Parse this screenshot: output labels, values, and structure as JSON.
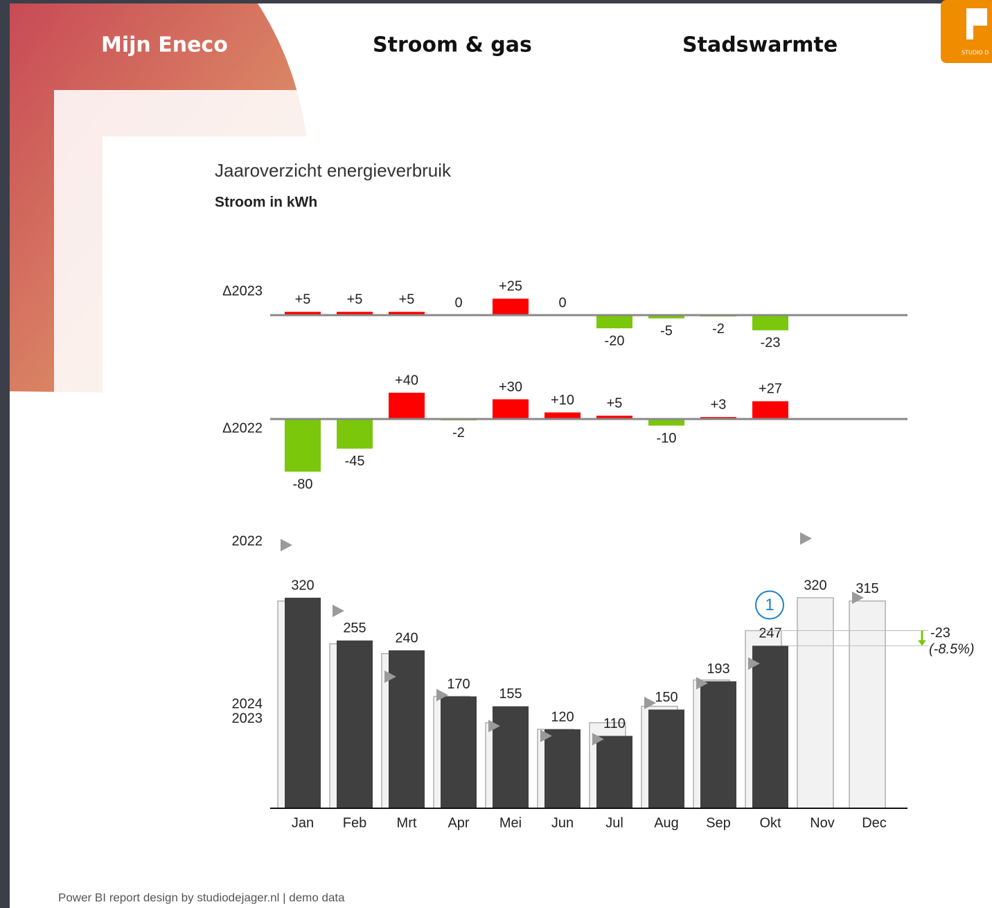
{
  "nav": {
    "items": [
      "Mijn Eneco",
      "Stroom & gas",
      "Stadswarmte"
    ],
    "logo_text": "STUDIO D"
  },
  "footer": "Power BI report design by studiodejager.nl | demo data",
  "chart_data": {
    "type": "ibcs-variance",
    "title": "Jaaroverzicht energieverbruik",
    "subtitle": "Stroom in kWh",
    "categories": [
      "Jan",
      "Feb",
      "Mrt",
      "Apr",
      "Mei",
      "Jun",
      "Jul",
      "Aug",
      "Sep",
      "Okt",
      "Nov",
      "Dec"
    ],
    "ylim": [
      0,
      420
    ],
    "series": [
      {
        "name": "2024",
        "color": "#404040",
        "values": [
          320,
          255,
          240,
          170,
          155,
          120,
          110,
          150,
          193,
          247,
          null,
          null
        ]
      },
      {
        "name": "2023",
        "color": "#f2f2f2",
        "values": [
          315,
          250,
          235,
          170,
          130,
          120,
          130,
          155,
          195,
          270,
          320,
          315
        ]
      },
      {
        "name": "2022",
        "color": "#9a9a9a",
        "values": [
          400,
          300,
          200,
          172,
          125,
          110,
          105,
          160,
          190,
          220,
          410,
          320
        ]
      }
    ],
    "delta_series": [
      {
        "name": "Δ2023",
        "values": [
          5,
          5,
          5,
          0,
          25,
          0,
          -20,
          -5,
          -2,
          -23,
          null,
          null
        ],
        "value_labels": [
          "+5",
          "+5",
          "+5",
          "0",
          "+25",
          "0",
          "-20",
          "-5",
          "-2",
          "-23",
          null,
          null
        ]
      },
      {
        "name": "Δ2022",
        "values": [
          -80,
          -45,
          40,
          -2,
          30,
          10,
          5,
          -10,
          3,
          27,
          null,
          null
        ],
        "value_labels": [
          "-80",
          "-45",
          "+40",
          "-2",
          "+30",
          "+10",
          "+5",
          "-10",
          "+3",
          "+27",
          null,
          null
        ]
      }
    ],
    "positive_color": "#ff0000",
    "negative_color": "#7ac70c",
    "callout": {
      "badge": "1",
      "delta": -23,
      "delta_pct": {
        "value": -8.5,
        "label": "(-8.5%)"
      }
    }
  }
}
